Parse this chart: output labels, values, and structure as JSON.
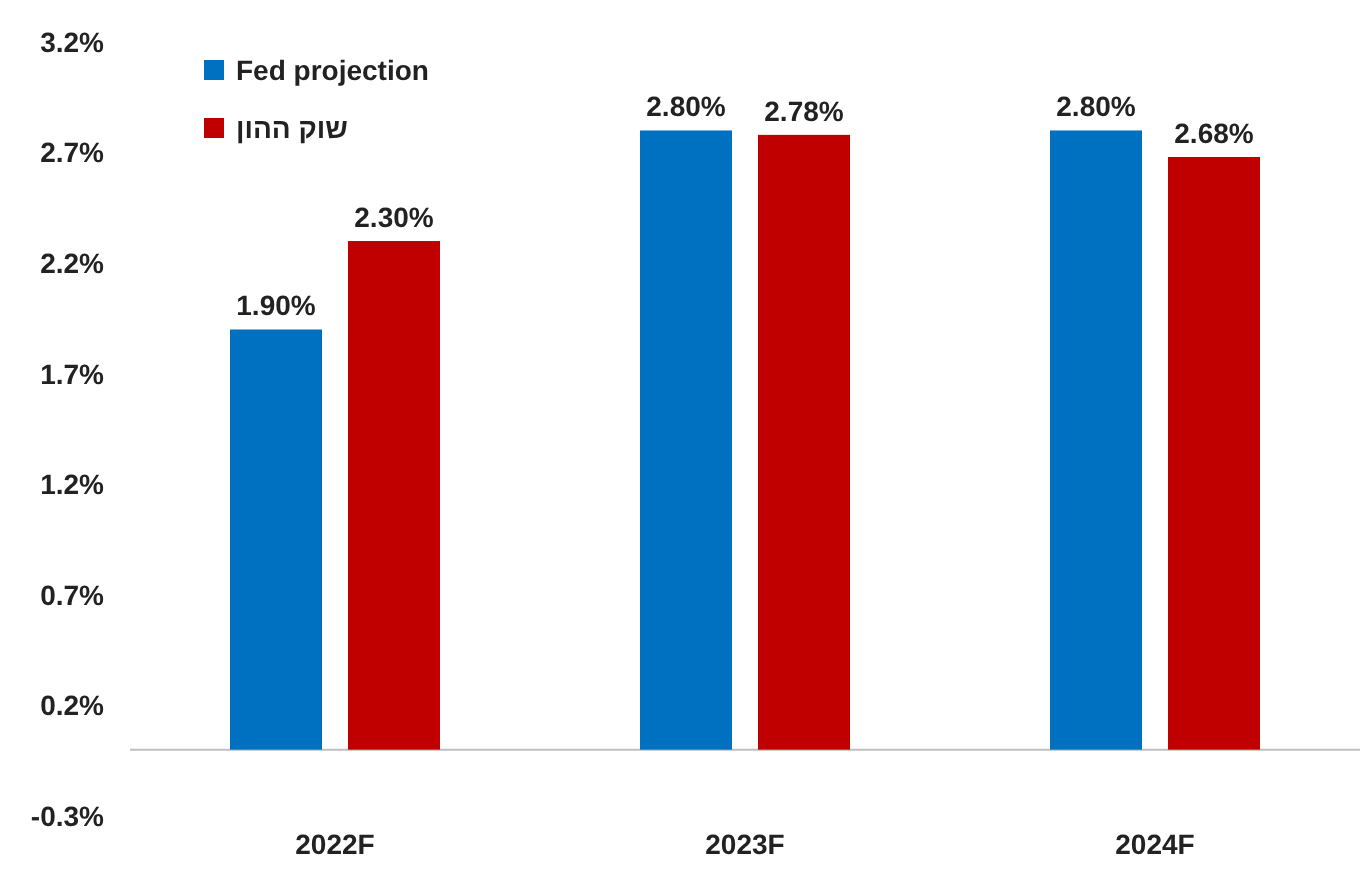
{
  "chart_data": {
    "type": "bar",
    "categories": [
      "2022F",
      "2023F",
      "2024F"
    ],
    "series": [
      {
        "name": "Fed projection",
        "color": "#0070c0",
        "values": [
          1.9,
          2.8,
          2.8
        ],
        "value_labels": [
          "1.90%",
          "2.80%",
          "2.80%"
        ]
      },
      {
        "name": "שוק ההון",
        "color": "#c00000",
        "values": [
          2.3,
          2.78,
          2.68
        ],
        "value_labels": [
          "2.30%",
          "2.78%",
          "2.68%"
        ]
      }
    ],
    "ylim": [
      -0.3,
      3.2
    ],
    "yticks": [
      {
        "value": -0.3,
        "label": "-0.3%"
      },
      {
        "value": 0.2,
        "label": "0.2%"
      },
      {
        "value": 0.7,
        "label": "0.7%"
      },
      {
        "value": 1.2,
        "label": "1.2%"
      },
      {
        "value": 1.7,
        "label": "1.7%"
      },
      {
        "value": 2.2,
        "label": "2.2%"
      },
      {
        "value": 2.7,
        "label": "2.7%"
      },
      {
        "value": 3.2,
        "label": "3.2%"
      }
    ],
    "grid": false,
    "legend": "top left"
  }
}
